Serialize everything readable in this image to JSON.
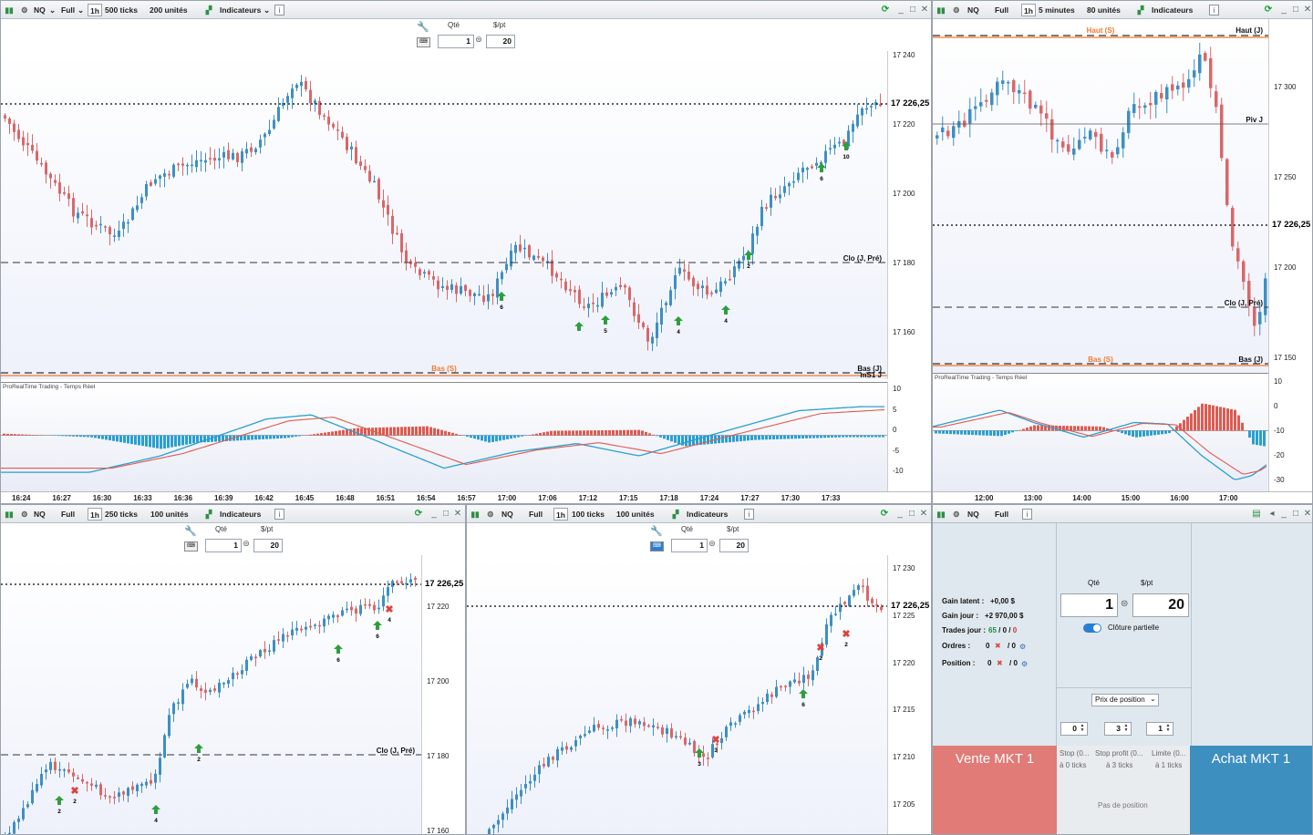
{
  "colors": {
    "bull": "#3d8fc4",
    "bear": "#d9676a",
    "orange": "#f07a2c",
    "osc_blue": "#2a9fd0",
    "osc_red": "#e05a50"
  },
  "toolbar_common": {
    "instrument": "NQ",
    "mode": "Full",
    "indicators": "Indicateurs",
    "interval_1h": "1h",
    "qty_label": "Qté",
    "pt_label": "$/pt",
    "qty": "1",
    "pt": "20"
  },
  "chart_a": {
    "ticks": "500 ticks",
    "units": "200 unités",
    "price": "17 226,25",
    "yticks": [
      "17 240",
      "17 220",
      "17 200",
      "17 180",
      "17 160"
    ],
    "labels": {
      "clo": "Clo (J, Pré)",
      "bas_s": "Bas (S)",
      "bas_j": "Bas (J)",
      "ms1": "mS1 J"
    },
    "osc_title": "ProRealTime Trading - Temps Réel",
    "osc_ticks": [
      "10",
      "5",
      "0",
      "-5",
      "-10"
    ],
    "xticks": [
      "16:24",
      "16:27",
      "16:30",
      "16:33",
      "16:36",
      "16:39",
      "16:42",
      "16:45",
      "16:48",
      "16:51",
      "16:54",
      "16:57",
      "17:00",
      "17:06",
      "17:12",
      "17:15",
      "17:18",
      "17:24",
      "17:27",
      "17:30",
      "17:33"
    ],
    "signals": [
      "6",
      "5",
      "4",
      "4",
      "2",
      "6",
      "10"
    ]
  },
  "chart_b": {
    "interval": "5 minutes",
    "units": "80 unités",
    "price": "17 226,25",
    "yticks": [
      "17 300",
      "17 250",
      "17 200",
      "17 150"
    ],
    "labels": {
      "haut_s": "Haut (S)",
      "haut_j": "Haut (J)",
      "piv": "Piv J",
      "clo": "Clo (J, Pré)",
      "bas_s": "Bas (S)",
      "bas_j": "Bas (J)"
    },
    "osc_title": "ProRealTime Trading - Temps Réel",
    "osc_ticks": [
      "10",
      "0",
      "-10",
      "-20",
      "-30"
    ],
    "xticks": [
      "12:00",
      "13:00",
      "14:00",
      "15:00",
      "16:00",
      "17:00"
    ]
  },
  "chart_c": {
    "ticks": "250 ticks",
    "units": "100 unités",
    "price": "17 226,25",
    "yticks": [
      "17 220",
      "17 200",
      "17 180",
      "17 160"
    ],
    "labels": {
      "clo": "Clo (J, Pré)"
    },
    "signals": [
      "2",
      "2",
      "4",
      "2",
      "6",
      "6",
      "4"
    ]
  },
  "chart_d": {
    "ticks": "100 ticks",
    "units": "100 unités",
    "price": "17 226,25",
    "yticks": [
      "17 230",
      "17 225",
      "17 220",
      "17 215",
      "17 210",
      "17 205"
    ],
    "signals": [
      "3",
      "3",
      "6",
      "2",
      "2"
    ]
  },
  "order": {
    "latent_label": "Gain latent :",
    "latent": "+0,00 $",
    "jour_label": "Gain jour :",
    "jour": "+2 970,00 $",
    "trades_label": "Trades jour :",
    "trades_a": "65",
    "trades_b": " / 0 / ",
    "trades_c": "0",
    "ordres_label": "Ordres :",
    "ordres_a": "0",
    "ordres_b": "/ 0",
    "position_label": "Position :",
    "position_a": "0",
    "position_b": "/ 0",
    "qty_label": "Qté",
    "pt_label": "$/pt",
    "qty": "1",
    "pt": "20",
    "cloture": "Clôture partielle",
    "prix": "Prix de position",
    "f1": "0",
    "f2": "3",
    "f3": "1",
    "sell": "Vente MKT 1",
    "buy": "Achat MKT 1",
    "stop": "Stop (0...",
    "stop2": "à 0 ticks",
    "profit": "Stop profit (0...",
    "profit2": "à 3 ticks",
    "limite": "Limite (0...",
    "limite2": "à 1 ticks",
    "nopos": "Pas de position"
  }
}
